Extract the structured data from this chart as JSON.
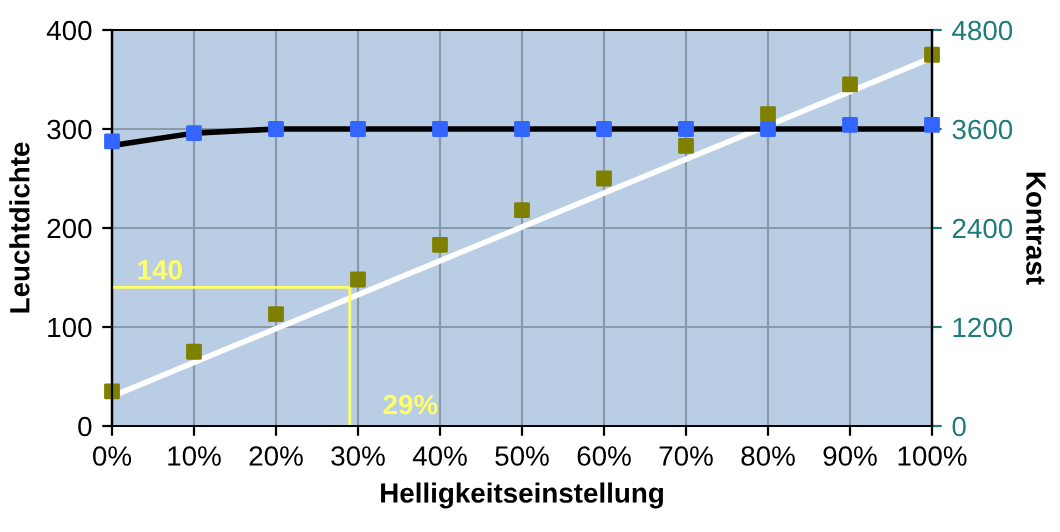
{
  "chart_data": {
    "type": "scatter",
    "xlabel": "Helligkeitseinstellung",
    "ylabel": "Leuchtdichte",
    "y2label": "Kontrast",
    "x": [
      0,
      10,
      20,
      30,
      40,
      50,
      60,
      70,
      80,
      90,
      100
    ],
    "xlim": [
      0,
      100
    ],
    "xticks": [
      {
        "value": 0,
        "label": "0%"
      },
      {
        "value": 10,
        "label": "10%"
      },
      {
        "value": 20,
        "label": "20%"
      },
      {
        "value": 30,
        "label": "30%"
      },
      {
        "value": 40,
        "label": "40%"
      },
      {
        "value": 50,
        "label": "50%"
      },
      {
        "value": 60,
        "label": "60%"
      },
      {
        "value": 70,
        "label": "70%"
      },
      {
        "value": 80,
        "label": "80%"
      },
      {
        "value": 90,
        "label": "90%"
      },
      {
        "value": 100,
        "label": "100%"
      }
    ],
    "ylim": [
      0,
      400
    ],
    "yticks": [
      0,
      100,
      200,
      300,
      400
    ],
    "y2lim": [
      0,
      4800
    ],
    "y2ticks": [
      0,
      1200,
      2400,
      3600,
      4800
    ],
    "grid": true,
    "marker": "square",
    "series": [
      {
        "type": "line",
        "color": "#ffffff",
        "x": [
          0,
          100
        ],
        "values": [
          30,
          372
        ],
        "marker": "none"
      },
      {
        "type": "line",
        "color": "#000000",
        "axis": "y2",
        "x": [
          0,
          10,
          20,
          30,
          50,
          100
        ],
        "values": [
          3400,
          3550,
          3600,
          3600,
          3600,
          3600
        ],
        "marker": "none"
      },
      {
        "type": "line",
        "color": "#ffff66",
        "x": [
          0,
          29,
          29
        ],
        "values": [
          140,
          140,
          0
        ],
        "marker": "none"
      },
      {
        "color": "#808000",
        "values": [
          35,
          75,
          113,
          148,
          183,
          218,
          250,
          283,
          315,
          345,
          375
        ]
      },
      {
        "color": "#3366ff",
        "axis": "y2",
        "values": [
          3450,
          3550,
          3600,
          3600,
          3600,
          3600,
          3600,
          3600,
          3600,
          3650,
          3650
        ]
      }
    ],
    "annotations": [
      {
        "text": "140",
        "x": 3,
        "y": 148
      },
      "29%"
    ]
  }
}
